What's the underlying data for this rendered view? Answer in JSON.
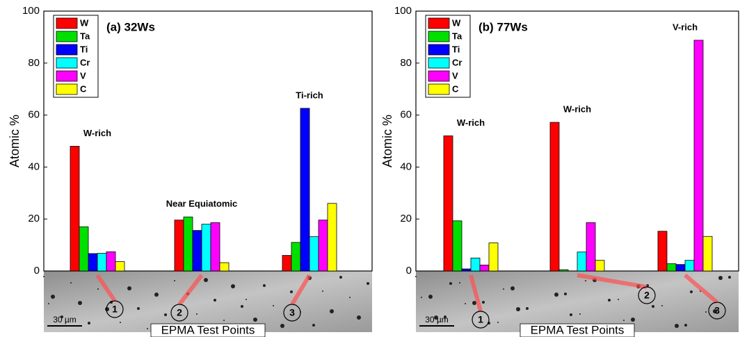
{
  "chart_data": [
    {
      "type": "bar",
      "title": "(a) 32Ws",
      "x_label": "EPMA Test Points",
      "y_label": "Atomic %",
      "categories": [
        "1",
        "2",
        "3"
      ],
      "annotations": [
        "W-rich",
        "Near Equiatomic",
        "Ti-rich"
      ],
      "scale_bar": "30 µm",
      "series": [
        {
          "name": "W",
          "color": "#ff0000",
          "values": [
            48,
            19.6,
            6
          ]
        },
        {
          "name": "Ta",
          "color": "#00e000",
          "values": [
            17,
            20.8,
            11
          ]
        },
        {
          "name": "Ti",
          "color": "#0000ff",
          "values": [
            6.7,
            15.6,
            62.6
          ]
        },
        {
          "name": "Cr",
          "color": "#00ffff",
          "values": [
            6.8,
            18,
            13.2
          ]
        },
        {
          "name": "V",
          "color": "#ff00ff",
          "values": [
            7.4,
            18.6,
            19.6
          ]
        },
        {
          "name": "C",
          "color": "#ffff00",
          "values": [
            3.6,
            3.2,
            26
          ]
        }
      ],
      "ylim": [
        0,
        100
      ],
      "yticks": [
        0,
        20,
        40,
        60,
        80,
        100
      ]
    },
    {
      "type": "bar",
      "title": "(b) 77Ws",
      "x_label": "EPMA Test Points",
      "y_label": "Atomic %",
      "categories": [
        "1",
        "2",
        "3"
      ],
      "annotations": [
        "W-rich",
        "W-rich",
        "V-rich"
      ],
      "scale_bar": "30 µm",
      "series": [
        {
          "name": "W",
          "color": "#ff0000",
          "values": [
            52,
            57.2,
            15.3
          ]
        },
        {
          "name": "Ta",
          "color": "#00e000",
          "values": [
            19.3,
            0.5,
            2.8
          ]
        },
        {
          "name": "Ti",
          "color": "#0000ff",
          "values": [
            0.8,
            0,
            2.5
          ]
        },
        {
          "name": "Cr",
          "color": "#00ffff",
          "values": [
            5,
            7.3,
            4.1
          ]
        },
        {
          "name": "V",
          "color": "#ff00ff",
          "values": [
            2.3,
            18.6,
            88.8
          ]
        },
        {
          "name": "C",
          "color": "#ffff00",
          "values": [
            10.8,
            4.1,
            13.3
          ]
        }
      ],
      "ylim": [
        0,
        100
      ],
      "yticks": [
        0,
        20,
        40,
        60,
        80,
        100
      ]
    }
  ]
}
